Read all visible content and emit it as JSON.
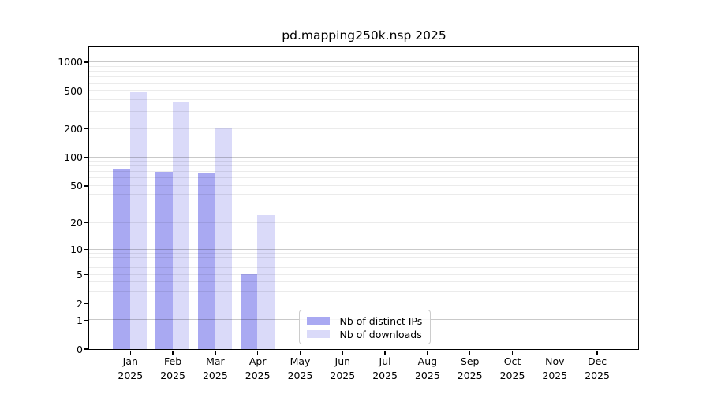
{
  "chart_data": {
    "type": "bar",
    "title": "pd.mapping250k.nsp 2025",
    "x_categories": [
      "Jan",
      "Feb",
      "Mar",
      "Apr",
      "May",
      "Jun",
      "Jul",
      "Aug",
      "Sep",
      "Oct",
      "Nov",
      "Dec"
    ],
    "x_year": "2025",
    "xlabel": "",
    "ylabel": "",
    "y_scale": "log10(1 + y)",
    "ylim": [
      0,
      1435
    ],
    "y_ticks": [
      0,
      1,
      2,
      5,
      10,
      20,
      50,
      100,
      200,
      500,
      1000
    ],
    "y_major_gridlines": [
      1,
      10,
      100,
      1000
    ],
    "y_minor_gridlines": [
      2,
      3,
      4,
      5,
      6,
      7,
      8,
      9,
      20,
      30,
      40,
      50,
      60,
      70,
      80,
      90,
      200,
      300,
      400,
      500,
      600,
      700,
      800,
      900
    ],
    "grid": "horizontal, major and minor, drawn over bars",
    "legend_position": "lower center, inside plot",
    "series": [
      {
        "name": "Nb of distinct IPs",
        "color": "#a9a9f2",
        "values": [
          74,
          70,
          68,
          5,
          0,
          0,
          0,
          0,
          0,
          0,
          0,
          0
        ]
      },
      {
        "name": "Nb of downloads",
        "color": "#dadaf9",
        "values": [
          480,
          380,
          200,
          24,
          0,
          0,
          0,
          0,
          0,
          0,
          0,
          0
        ]
      }
    ],
    "colors": {
      "axis": "#000000",
      "major_grid": "rgba(0,0,0,0.21)",
      "minor_grid": "rgba(0,0,0,0.08)",
      "background": "#ffffff"
    }
  }
}
